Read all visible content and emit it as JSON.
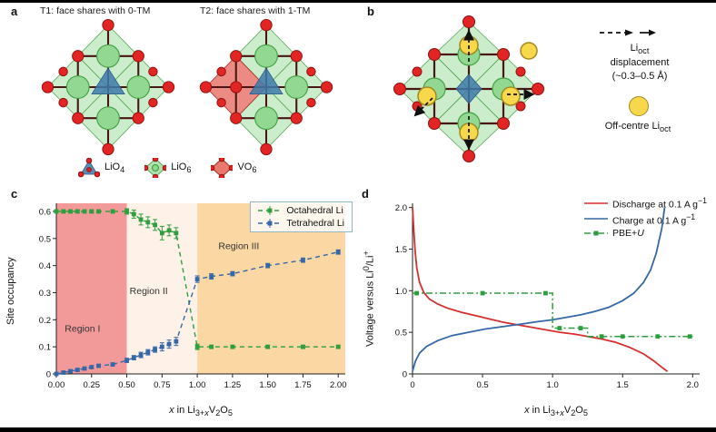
{
  "colors": {
    "octahedral_green": "#2f9e3f",
    "tetrahedral_blue": "#3668a8",
    "discharge_red": "#d62f2f",
    "charge_blue": "#3668a8",
    "pbeu_green": "#2f9e3f",
    "region1_red": "#f29a9a",
    "region2_cream": "#fdf1e8",
    "region3_orange": "#fad7a3",
    "li_green": "#92d892",
    "oxygen_red": "#e32424",
    "vo6_red": "#e03e30",
    "lio4_blue": "#3e7aaa",
    "offcentre_yellow": "#f7d84b"
  },
  "panel_a": {
    "label": "a",
    "t1_title": "T1: face shares with 0-TM",
    "t2_title": "T2: face shares with 1-TM",
    "legend": {
      "lio4_html": "LiO<sub>4</sub>",
      "lio6_html": "LiO<sub>6</sub>",
      "vo6_html": "VO<sub>6</sub>"
    }
  },
  "panel_b": {
    "label": "b",
    "displacement_line1_html": "Li<sub>oct</sub>",
    "displacement_line2": "displacement",
    "displacement_line3": "(~0.3–0.5 Å)",
    "offcentre_html": "Off-centre Li<sub>oct</sub>"
  },
  "panel_c": {
    "label": "c",
    "xlabel_html": "<i>x</i> in Li<sub>3+<i>x</i></sub>V<sub>2</sub>O<sub>5</sub>",
    "ylabel_html": "Site occupancy"
  },
  "panel_d": {
    "label": "d",
    "xlabel_html": "<i>x</i> in Li<sub>3+<i>x</i></sub>V<sub>2</sub>O<sub>5</sub>",
    "ylabel_html": "Voltage versus Li<sup>0</sup>/Li<sup>+</sup>"
  },
  "chart_data": [
    {
      "id": "c",
      "type": "line",
      "title": "",
      "xlabel": "x in Li3+xV2O5",
      "ylabel": "Site occupancy",
      "xlim": [
        0,
        2.05
      ],
      "ylim": [
        0,
        0.63
      ],
      "xticks": [
        0,
        0.25,
        0.5,
        0.75,
        1.0,
        1.25,
        1.5,
        1.75,
        2.0
      ],
      "xtick_labels": [
        "0.00",
        "0.25",
        "0.50",
        "0.75",
        "1.00",
        "1.25",
        "1.50",
        "1.75",
        "2.00"
      ],
      "yticks": [
        0,
        0.1,
        0.2,
        0.3,
        0.4,
        0.5,
        0.6
      ],
      "ytick_labels": [
        "0",
        "0.1",
        "0.2",
        "0.3",
        "0.4",
        "0.5",
        "0.6"
      ],
      "grid": false,
      "legend_position": "top-right",
      "regions": [
        {
          "label": "Region I",
          "x0": 0,
          "x1": 0.5,
          "color": "#f29a9a",
          "label_x": 0.06,
          "label_y": 0.155
        },
        {
          "label": "Region II",
          "x0": 0.5,
          "x1": 1.0,
          "color": "#fdf1e8",
          "label_x": 0.52,
          "label_y": 0.295
        },
        {
          "label": "Region III",
          "x0": 1.0,
          "x1": 2.05,
          "color": "#fad7a3",
          "label_x": 1.15,
          "label_y": 0.46
        }
      ],
      "series": [
        {
          "name": "Octahedral Li",
          "color": "#2f9e3f",
          "marker": "square",
          "dash": "5 4",
          "width": 1.4,
          "x": [
            0.0,
            0.05,
            0.1,
            0.15,
            0.2,
            0.25,
            0.3,
            0.4,
            0.5,
            0.55,
            0.6,
            0.65,
            0.7,
            0.75,
            0.8,
            0.85,
            1.0,
            1.1,
            1.25,
            1.5,
            1.75,
            2.0
          ],
          "y": [
            0.6,
            0.6,
            0.6,
            0.6,
            0.6,
            0.6,
            0.6,
            0.6,
            0.6,
            0.59,
            0.57,
            0.56,
            0.55,
            0.52,
            0.53,
            0.52,
            0.1,
            0.1,
            0.1,
            0.1,
            0.1,
            0.1
          ],
          "err": [
            0.006,
            0.006,
            0.006,
            0.006,
            0.006,
            0.006,
            0.006,
            0.006,
            0.01,
            0.015,
            0.02,
            0.02,
            0.02,
            0.025,
            0.02,
            0.02,
            0.01,
            0.006,
            0.006,
            0.006,
            0.006,
            0.006
          ]
        },
        {
          "name": "Tetrahedral Li",
          "color": "#3668a8",
          "marker": "square",
          "dash": "5 4",
          "width": 1.4,
          "x": [
            0.0,
            0.05,
            0.1,
            0.15,
            0.2,
            0.25,
            0.3,
            0.4,
            0.5,
            0.55,
            0.6,
            0.65,
            0.7,
            0.75,
            0.8,
            0.85,
            1.0,
            1.1,
            1.25,
            1.5,
            1.75,
            2.0
          ],
          "y": [
            0.0,
            0.005,
            0.01,
            0.015,
            0.02,
            0.025,
            0.03,
            0.035,
            0.05,
            0.06,
            0.07,
            0.08,
            0.09,
            0.1,
            0.11,
            0.12,
            0.35,
            0.36,
            0.37,
            0.4,
            0.42,
            0.45
          ],
          "err": [
            0.005,
            0.005,
            0.005,
            0.005,
            0.005,
            0.005,
            0.005,
            0.005,
            0.008,
            0.008,
            0.01,
            0.01,
            0.01,
            0.015,
            0.015,
            0.015,
            0.012,
            0.01,
            0.008,
            0.008,
            0.008,
            0.008
          ]
        }
      ]
    },
    {
      "id": "d",
      "type": "line",
      "title": "",
      "xlabel": "x in Li3+xV2O5",
      "ylabel": "Voltage versus Li0/Li+",
      "xlim": [
        0,
        2.05
      ],
      "ylim": [
        0,
        2.05
      ],
      "xticks": [
        0,
        0.5,
        1.0,
        1.5,
        2.0
      ],
      "xtick_labels": [
        "0",
        "0.5",
        "1.0",
        "1.5",
        "2.0"
      ],
      "yticks": [
        0,
        0.5,
        1.0,
        1.5,
        2.0
      ],
      "ytick_labels": [
        "0",
        "0.5",
        "1.0",
        "1.5",
        "2.0"
      ],
      "grid": false,
      "legend_position": "top-right",
      "series": [
        {
          "name": "Discharge at 0.1 A g-1",
          "label_html": "Discharge at 0.1 A g<sup>−1</sup>",
          "color": "#d62f2f",
          "marker": "none",
          "width": 1.8,
          "x": [
            0.0,
            0.01,
            0.02,
            0.03,
            0.05,
            0.08,
            0.12,
            0.18,
            0.25,
            0.35,
            0.45,
            0.55,
            0.65,
            0.75,
            0.85,
            0.95,
            1.05,
            1.15,
            1.25,
            1.35,
            1.45,
            1.55,
            1.65,
            1.72,
            1.78,
            1.82
          ],
          "y": [
            2.0,
            1.7,
            1.45,
            1.28,
            1.1,
            0.98,
            0.9,
            0.84,
            0.79,
            0.74,
            0.7,
            0.66,
            0.62,
            0.59,
            0.56,
            0.53,
            0.5,
            0.48,
            0.45,
            0.42,
            0.38,
            0.32,
            0.24,
            0.16,
            0.08,
            0.03
          ]
        },
        {
          "name": "Charge at 0.1 A g-1",
          "label_html": "Charge at 0.1 A g<sup>−1</sup>",
          "color": "#3668a8",
          "marker": "none",
          "width": 1.8,
          "x": [
            0.0,
            0.02,
            0.05,
            0.1,
            0.18,
            0.28,
            0.4,
            0.52,
            0.65,
            0.78,
            0.9,
            1.0,
            1.1,
            1.2,
            1.3,
            1.4,
            1.5,
            1.58,
            1.65,
            1.7,
            1.74,
            1.78,
            1.8
          ],
          "y": [
            0.03,
            0.15,
            0.25,
            0.33,
            0.4,
            0.46,
            0.5,
            0.54,
            0.57,
            0.6,
            0.63,
            0.65,
            0.68,
            0.71,
            0.75,
            0.8,
            0.88,
            0.97,
            1.1,
            1.25,
            1.45,
            1.75,
            2.0
          ]
        },
        {
          "name": "PBE+U",
          "label_html": "PBE+<i>U</i>",
          "color": "#2f9e3f",
          "marker": "square",
          "dash": "7 3 2 3",
          "width": 1.5,
          "x": [
            0.0,
            1.0,
            1.0,
            1.25,
            1.25,
            2.0
          ],
          "y": [
            0.97,
            0.97,
            0.55,
            0.55,
            0.45,
            0.45
          ],
          "marker_x": [
            0.03,
            0.5,
            0.95,
            1.05,
            1.2,
            1.35,
            1.5,
            1.75,
            1.98
          ],
          "marker_y": [
            0.97,
            0.97,
            0.97,
            0.55,
            0.55,
            0.45,
            0.45,
            0.45,
            0.45
          ]
        }
      ]
    }
  ]
}
